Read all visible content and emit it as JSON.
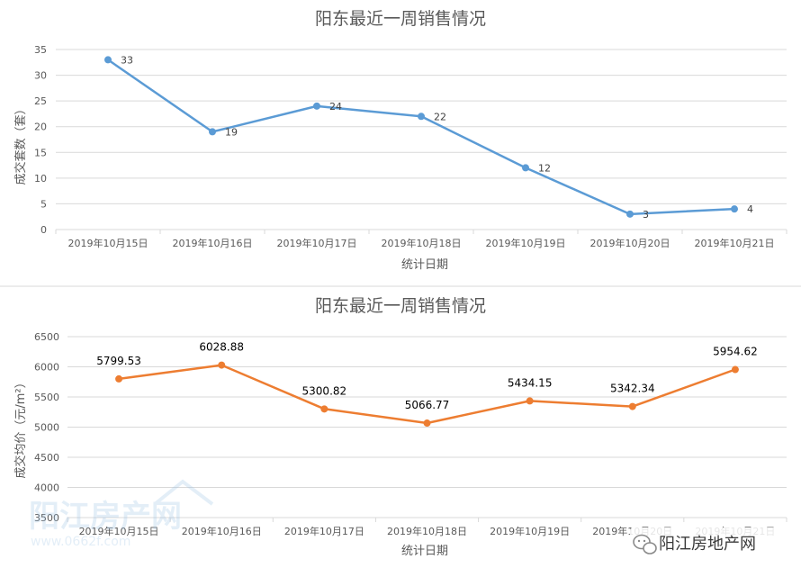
{
  "chart_data": [
    {
      "type": "line",
      "title": "阳东最近一周销售情况",
      "xlabel": "统计日期",
      "ylabel": "成交套数（套）",
      "categories": [
        "2019年10月15日",
        "2019年10月16日",
        "2019年10月17日",
        "2019年10月18日",
        "2019年10月19日",
        "2019年10月20日",
        "2019年10月21日"
      ],
      "series": [
        {
          "values": [
            33,
            19,
            24,
            22,
            12,
            3,
            4
          ]
        }
      ],
      "data_labels": [
        "33",
        "19",
        "24",
        "22",
        "12",
        "3",
        "4"
      ],
      "ylim": [
        0,
        35
      ],
      "yticks": [
        "0",
        "5",
        "10",
        "15",
        "20",
        "25",
        "30",
        "35"
      ],
      "grid": true,
      "color": "#5b9bd5"
    },
    {
      "type": "line",
      "title": "阳东最近一周销售情况",
      "xlabel": "统计日期",
      "ylabel": "成交均价（元/m²）",
      "categories": [
        "2019年10月15日",
        "2019年10月16日",
        "2019年10月17日",
        "2019年10月18日",
        "2019年10月19日",
        "2019年10月20日",
        "2019年10月21日"
      ],
      "series": [
        {
          "values": [
            5799.53,
            6028.88,
            5300.82,
            5066.77,
            5434.15,
            5342.34,
            5954.62
          ]
        }
      ],
      "data_labels": [
        "5799.53",
        "6028.88",
        "5300.82",
        "5066.77",
        "5434.15",
        "5342.34",
        "5954.62"
      ],
      "ylim": [
        3500,
        6500
      ],
      "yticks": [
        "3500",
        "4000",
        "4500",
        "5000",
        "5500",
        "6000",
        "6500"
      ],
      "grid": true,
      "color": "#ed7d31"
    }
  ],
  "watermark": {
    "brand": "阳江房产网",
    "url": "www.0662f.com",
    "badge": "阳江房地产网",
    "icon": "wechat-icon"
  }
}
